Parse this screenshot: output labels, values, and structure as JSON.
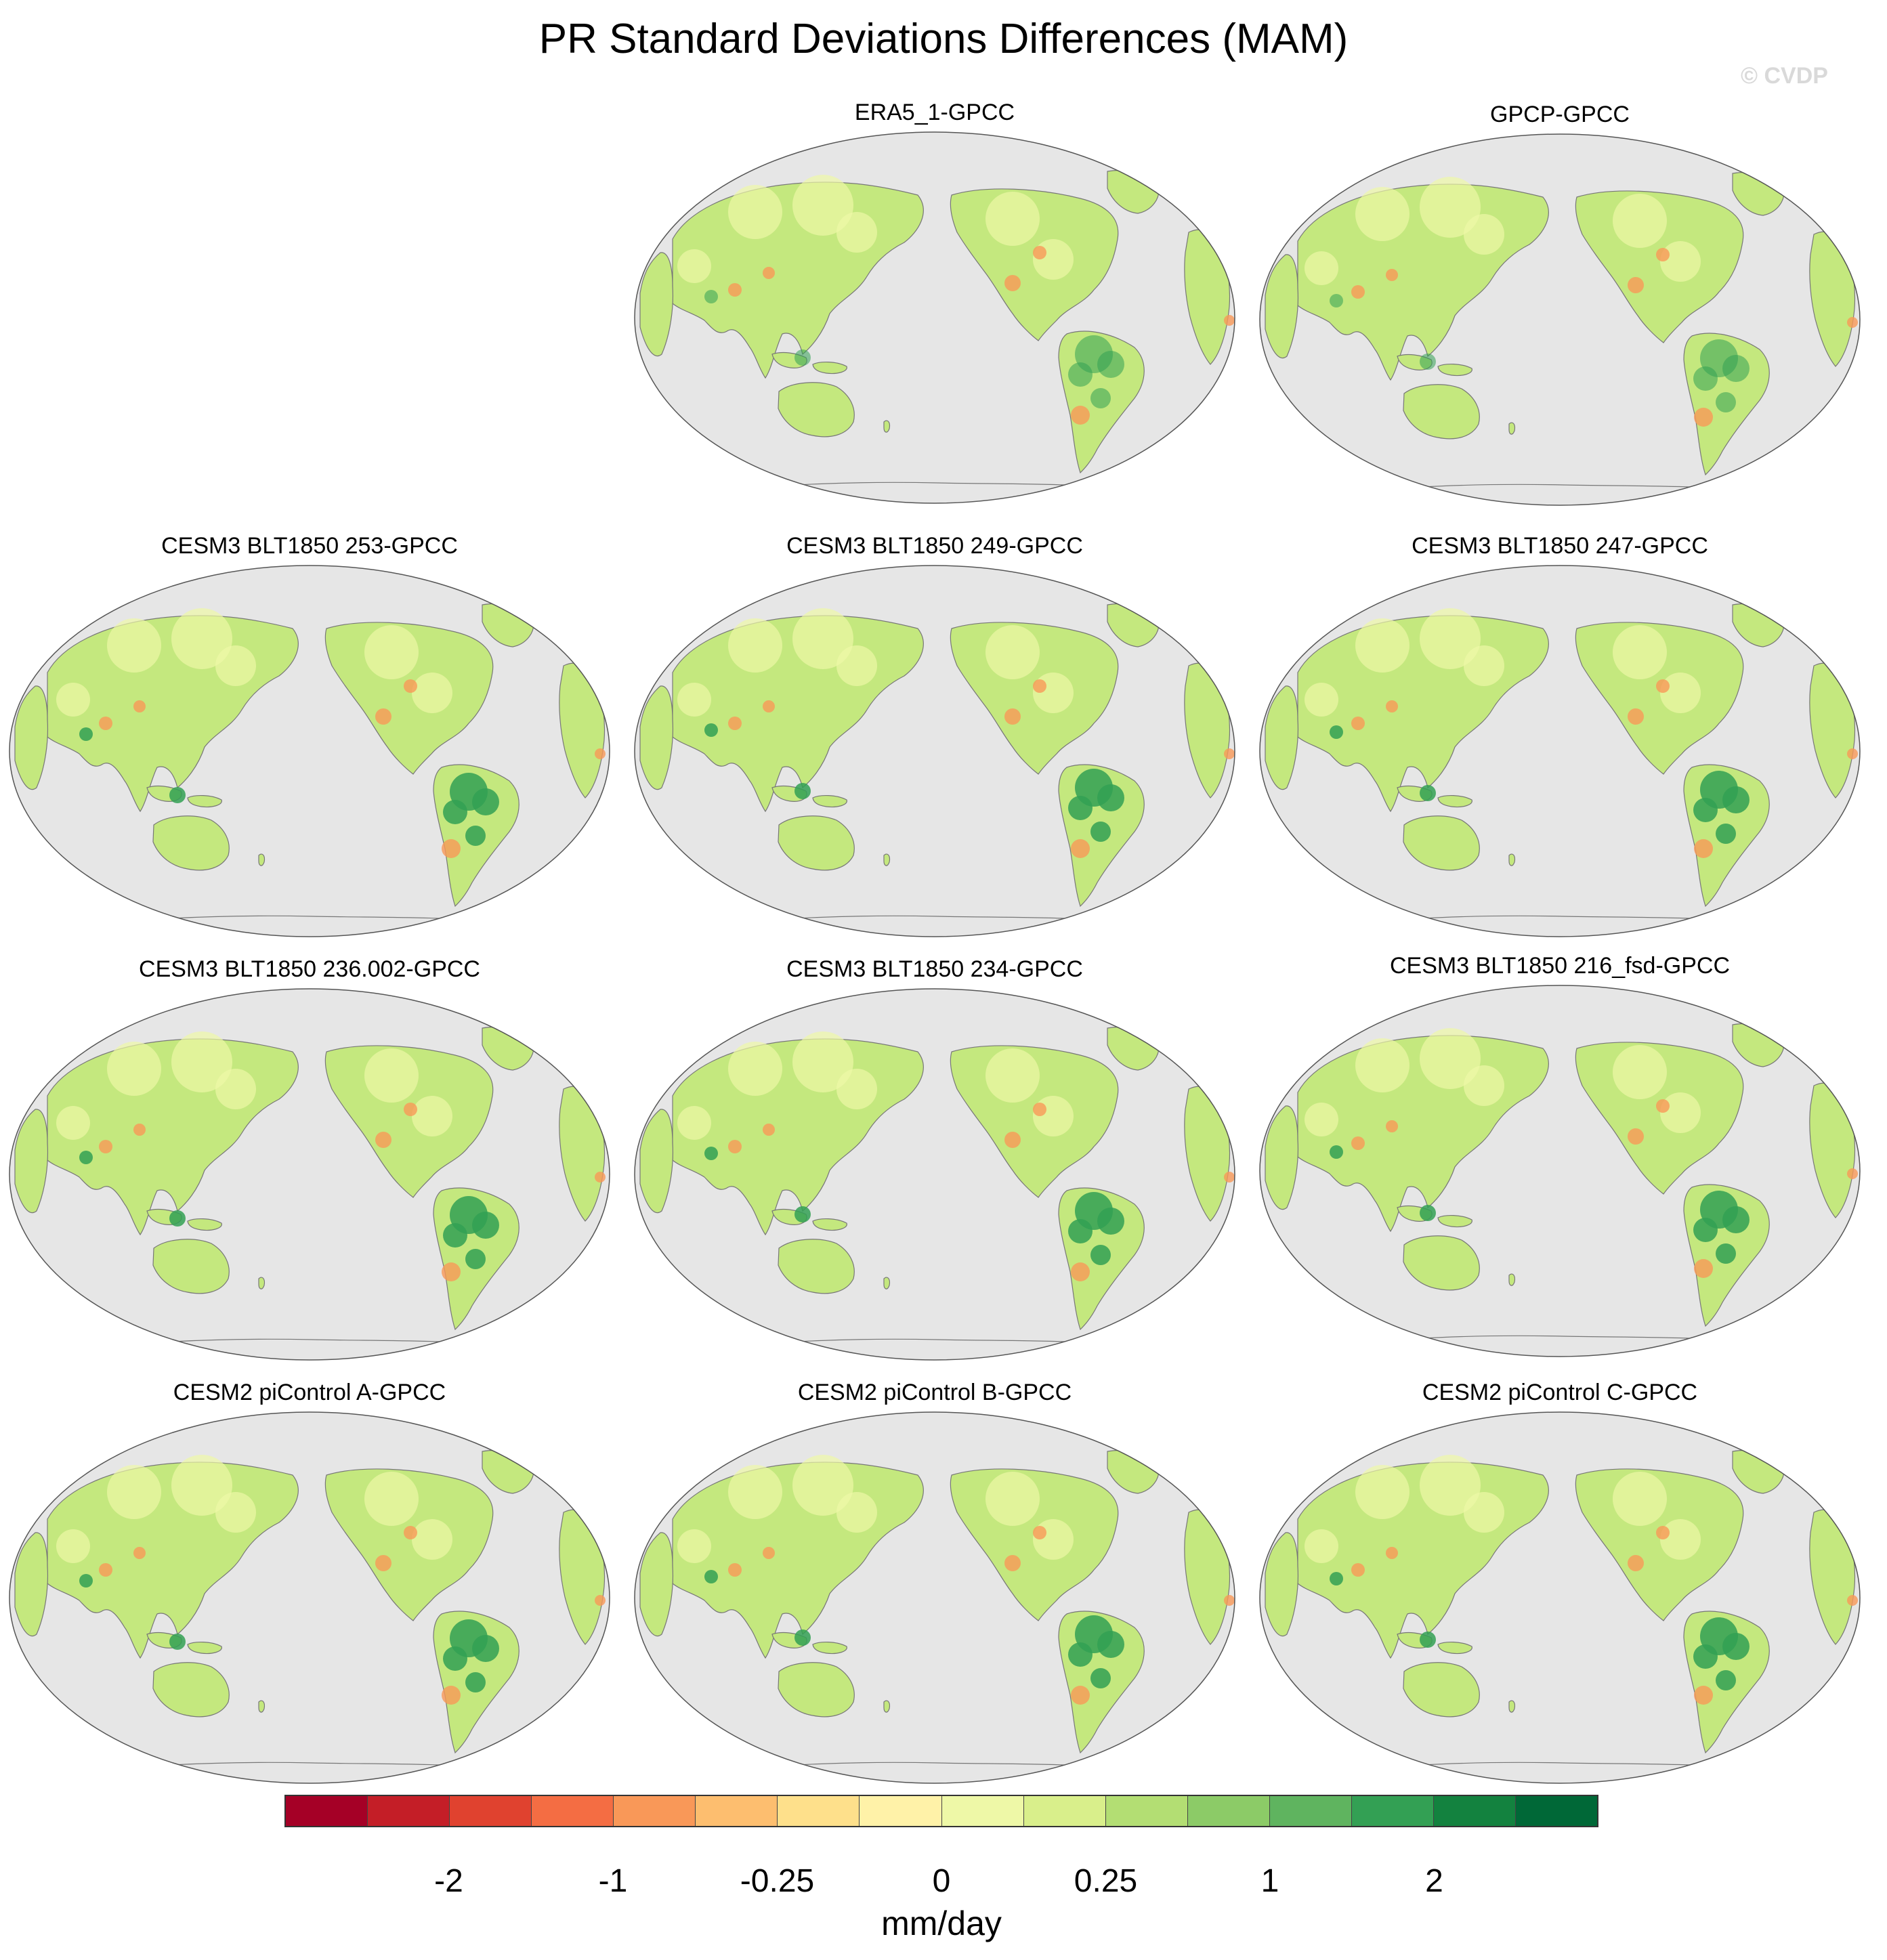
{
  "title": "PR Standard Deviations Differences (MAM)",
  "watermark": "© CVDP",
  "panels": [
    {
      "title": "ERA5_1-GPCC"
    },
    {
      "title": "GPCP-GPCC"
    },
    {
      "title": "CESM3 BLT1850 253-GPCC"
    },
    {
      "title": "CESM3 BLT1850 249-GPCC"
    },
    {
      "title": "CESM3 BLT1850 247-GPCC"
    },
    {
      "title": "CESM3 BLT1850 236.002-GPCC"
    },
    {
      "title": "CESM3 BLT1850 234-GPCC"
    },
    {
      "title": "CESM3 BLT1850 216_fsd-GPCC"
    },
    {
      "title": "CESM2 piControl A-GPCC"
    },
    {
      "title": "CESM2 piControl B-GPCC"
    },
    {
      "title": "CESM2 piControl C-GPCC"
    }
  ],
  "colorbar": {
    "label": "mm/day",
    "tick_labels": [
      "-2",
      "-1",
      "-0.25",
      "0",
      "0.25",
      "1",
      "2"
    ],
    "colors": [
      "#a50026",
      "#c41e27",
      "#e0422f",
      "#f46d43",
      "#f99858",
      "#fdbe6f",
      "#fee08b",
      "#fff2a8",
      "#eef8a7",
      "#d9ef8b",
      "#b3de73",
      "#8ccb67",
      "#5fb45f",
      "#33a054",
      "#13823f",
      "#006837"
    ]
  },
  "colors": {
    "ocean": "#e6e6e6",
    "land_base": "#c4e87e",
    "coast": "#777777"
  }
}
